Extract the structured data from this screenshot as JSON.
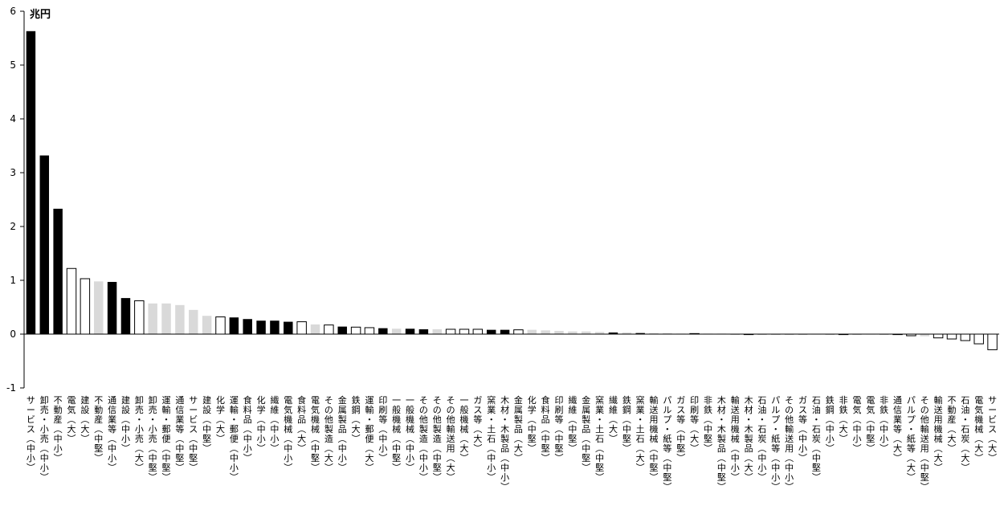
{
  "chart_data": {
    "type": "bar",
    "unit_label": "兆円",
    "ylim": [
      -1,
      6
    ],
    "yticks": [
      -1,
      0,
      1,
      2,
      3,
      4,
      5,
      6
    ],
    "grid": false,
    "colors": {
      "black": "#000000",
      "white": "#ffffff",
      "gray": "#d9d9d9",
      "outline": "#000000"
    },
    "categories": [
      "サービス(中小)",
      "卸売・小売(中小)",
      "不動産(中小)",
      "電気(大)",
      "建設(大)",
      "不動産(中堅)",
      "通信業等(中小)",
      "建設(中小)",
      "卸売・小売(大)",
      "卸売・小売(中堅)",
      "運輸・郵便(中堅)",
      "通信業等(中堅)",
      "サービス(中堅)",
      "建設(中堅)",
      "化学(大)",
      "運輸・郵便(中小)",
      "食料品(中小)",
      "化学(中小)",
      "繊維(中小)",
      "電気機械(中小)",
      "食料品(大)",
      "電気機械(中堅)",
      "その他製造(大)",
      "金属製品(中小)",
      "鉄鋼(大)",
      "運輸・郵便(大)",
      "印刷等(中小)",
      "一般機械(中堅)",
      "一般機械(中小)",
      "その他製造(中小)",
      "その他製造(中堅)",
      "その他輸送用(大)",
      "一般機械(大)",
      "ガス等(大)",
      "窯業・土石(中小)",
      "木材・木製品(中小)",
      "金属製品(大)",
      "化学(中堅)",
      "食料品(中堅)",
      "印刷等(中堅)",
      "繊維(中堅)",
      "金属製品(中堅)",
      "窯業・土石(中堅)",
      "繊維(大)",
      "鉄鋼(中堅)",
      "窯業・土石(大)",
      "輸送用機械(中堅)",
      "パルプ・紙等(中堅)",
      "ガス等(中堅)",
      "印刷等(大)",
      "非鉄(中堅)",
      "木材・木製品(中堅)",
      "輸送用機械(中小)",
      "木材・木製品(大)",
      "石油・石炭(中小)",
      "パルプ・紙等(中小)",
      "その他輸送用(中小)",
      "ガス等(中小)",
      "石油・石炭(中堅)",
      "鉄鋼(中小)",
      "非鉄(大)",
      "電気(中小)",
      "電気(中堅)",
      "非鉄(中小)",
      "通信業等(大)",
      "パルプ・紙等(大)",
      "その他輸送用(中堅)",
      "輸送用機械(大)",
      "不動産(大)",
      "石油・石炭(大)",
      "電気機械(大)",
      "サービス(大)"
    ],
    "values": [
      5.63,
      3.32,
      2.33,
      1.22,
      1.03,
      0.98,
      0.97,
      0.67,
      0.62,
      0.57,
      0.57,
      0.54,
      0.45,
      0.34,
      0.32,
      0.31,
      0.28,
      0.25,
      0.25,
      0.23,
      0.23,
      0.18,
      0.17,
      0.14,
      0.13,
      0.12,
      0.11,
      0.1,
      0.1,
      0.09,
      0.09,
      0.09,
      0.09,
      0.09,
      0.08,
      0.08,
      0.08,
      0.08,
      0.07,
      0.06,
      0.05,
      0.05,
      0.04,
      0.03,
      0.03,
      0.02,
      0.02,
      0.02,
      0.01,
      0.01,
      0.01,
      0.01,
      0.0,
      0.0,
      0.0,
      0.0,
      0.0,
      0.0,
      0.0,
      0.0,
      0.0,
      0.0,
      0.0,
      0.0,
      0.0,
      -0.03,
      -0.04,
      -0.07,
      -0.09,
      -0.12,
      -0.18,
      -0.29
    ],
    "fill": [
      "black",
      "black",
      "black",
      "white",
      "white",
      "gray",
      "black",
      "black",
      "white",
      "gray",
      "gray",
      "gray",
      "gray",
      "gray",
      "white",
      "black",
      "black",
      "black",
      "black",
      "black",
      "white",
      "gray",
      "white",
      "black",
      "white",
      "white",
      "black",
      "gray",
      "black",
      "black",
      "gray",
      "white",
      "white",
      "white",
      "black",
      "black",
      "white",
      "gray",
      "gray",
      "gray",
      "gray",
      "gray",
      "gray",
      "black",
      "gray",
      "black",
      "gray",
      "gray",
      "gray",
      "white",
      "gray",
      "gray",
      "black",
      "white",
      "black",
      "black",
      "black",
      "black",
      "gray",
      "black",
      "white",
      "black",
      "gray",
      "black",
      "white",
      "white",
      "gray",
      "white",
      "white",
      "white",
      "white",
      "white"
    ]
  }
}
